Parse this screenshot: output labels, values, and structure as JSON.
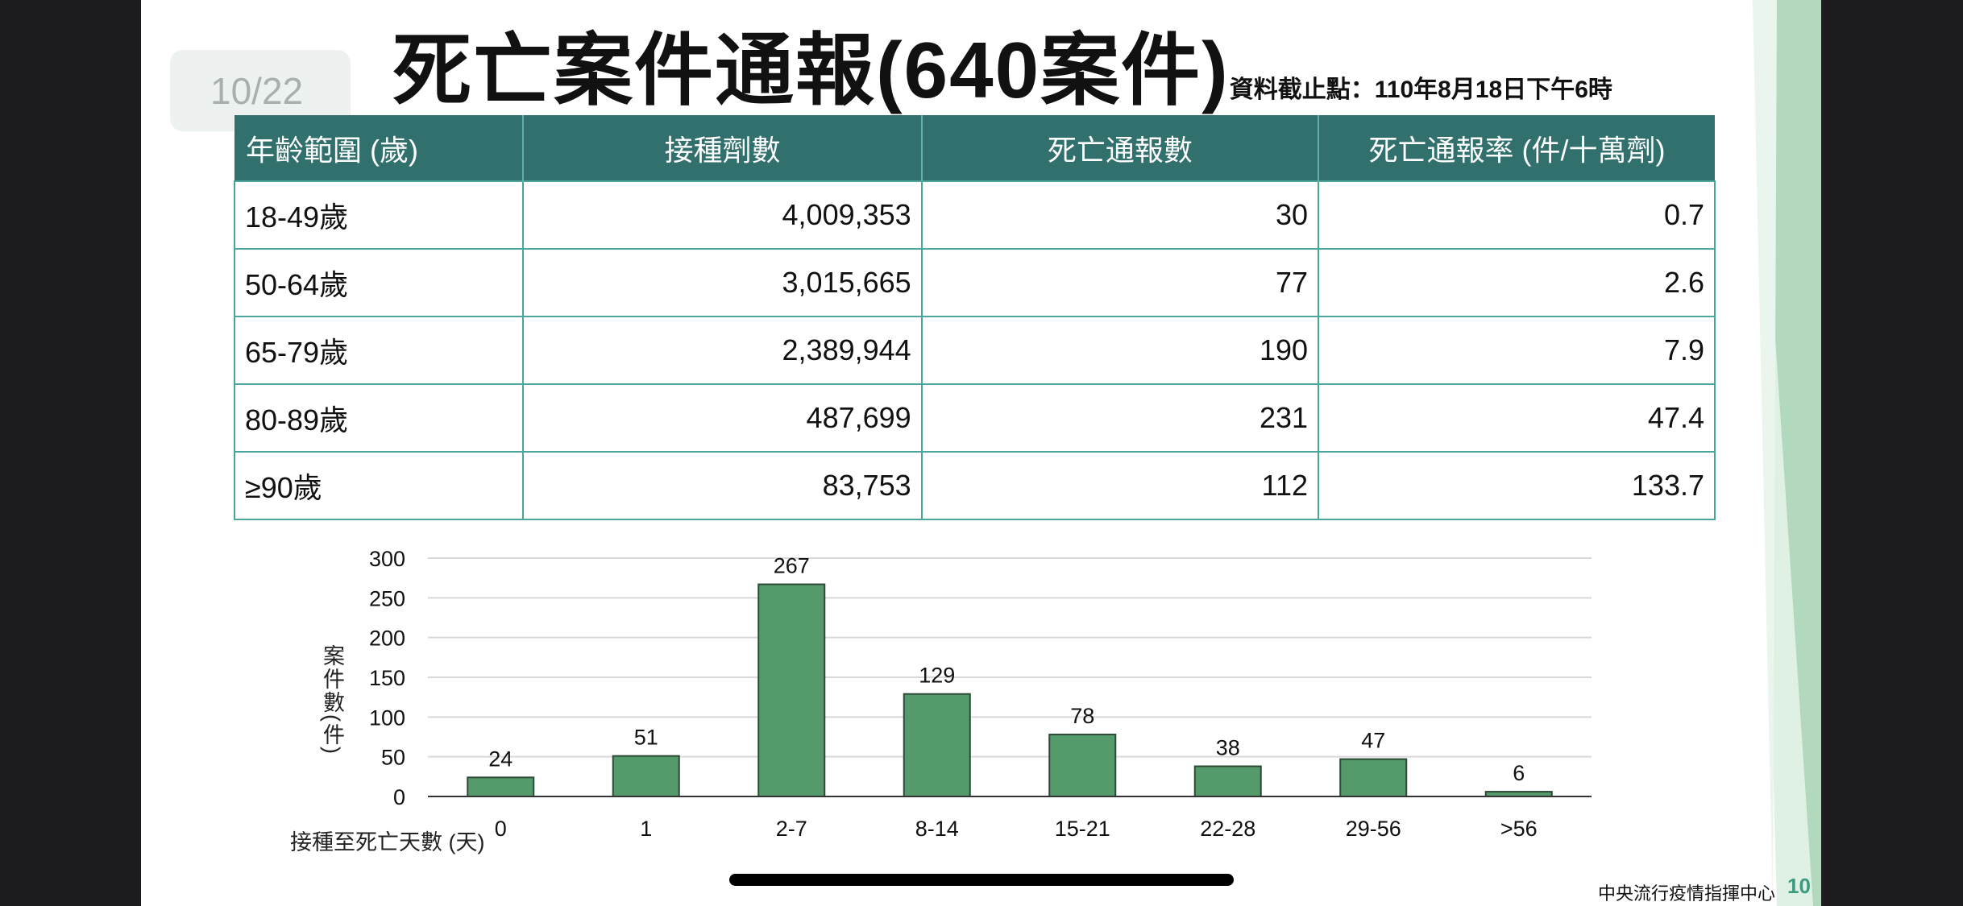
{
  "slide": {
    "title": "死亡案件通報(640案件)",
    "subtitle": "資料截止點：110年8月18日下午6時",
    "page_indicator": "10/22",
    "footer": "中央流行疫情指揮中心",
    "page_number": "10"
  },
  "table": {
    "headers": [
      "年齡範圍 (歲)",
      "接種劑數",
      "死亡通報數",
      "死亡通報率 (件/十萬劑)"
    ],
    "rows": [
      [
        "18-49歲",
        "4,009,353",
        "30",
        "0.7"
      ],
      [
        "50-64歲",
        "3,015,665",
        "77",
        "2.6"
      ],
      [
        "65-79歲",
        "2,389,944",
        "190",
        "7.9"
      ],
      [
        "80-89歲",
        "487,699",
        "231",
        "47.4"
      ],
      [
        "≥90歲",
        "83,753",
        "112",
        "133.7"
      ]
    ]
  },
  "chart_data": {
    "type": "bar",
    "title": "",
    "xlabel": "接種至死亡天數 (天)",
    "ylabel": "案件數(件)",
    "categories": [
      "0",
      "1",
      "2-7",
      "8-14",
      "15-21",
      "22-28",
      "29-56",
      ">56"
    ],
    "values": [
      24,
      51,
      267,
      129,
      78,
      38,
      47,
      6
    ],
    "yticks": [
      0,
      50,
      100,
      150,
      200,
      250,
      300
    ],
    "ylim": [
      0,
      300
    ],
    "grid": true,
    "bar_color": "#559a6b"
  }
}
